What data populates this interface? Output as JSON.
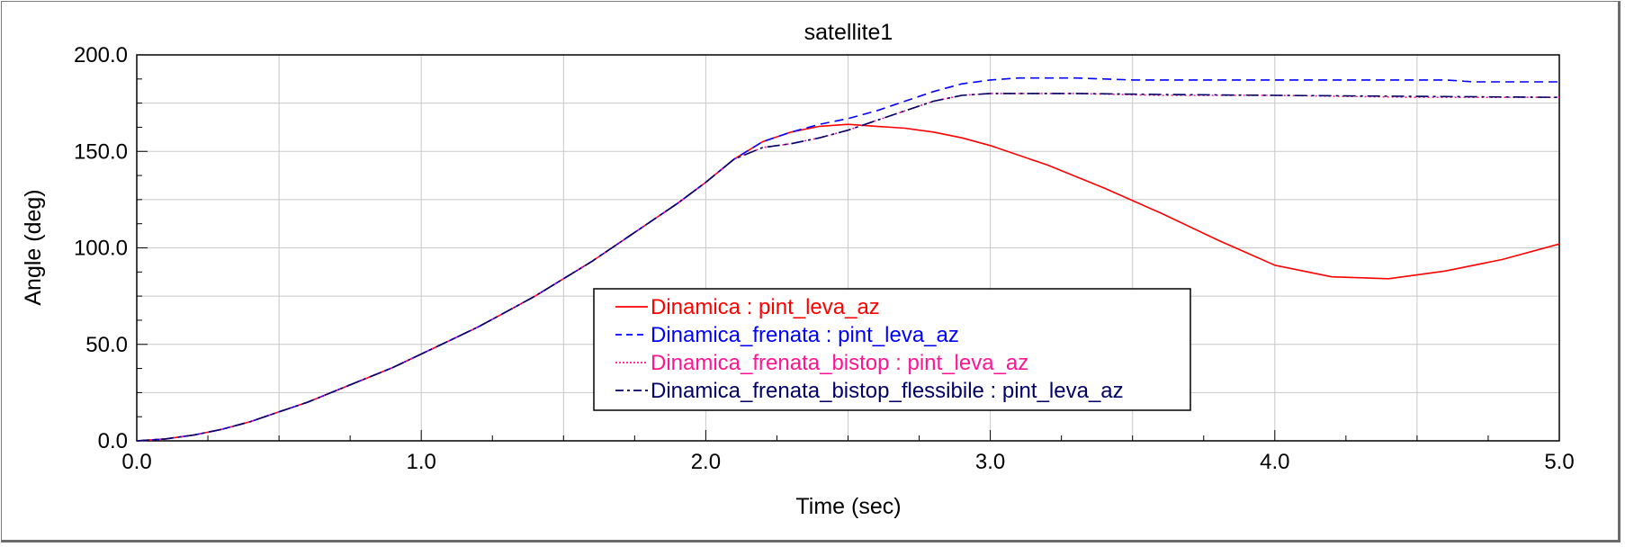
{
  "chart_data": {
    "type": "line",
    "title": "satellite1",
    "xlabel": "Time (sec)",
    "ylabel": "Angle (deg)",
    "xlim": [
      0,
      5
    ],
    "ylim": [
      0,
      200
    ],
    "x_ticks": [
      "0.0",
      "1.0",
      "2.0",
      "3.0",
      "4.0",
      "5.0"
    ],
    "y_ticks": [
      "0.0",
      "50.0",
      "100.0",
      "150.0",
      "200.0"
    ],
    "grid": true,
    "legend_position": "center",
    "series": [
      {
        "name": "Dinamica : pint_leva_az",
        "color": "#ff0000",
        "dash": "solid",
        "x": [
          0,
          0.1,
          0.2,
          0.3,
          0.4,
          0.5,
          0.6,
          0.7,
          0.8,
          0.9,
          1.0,
          1.1,
          1.2,
          1.3,
          1.4,
          1.5,
          1.6,
          1.7,
          1.8,
          1.9,
          2.0,
          2.1,
          2.2,
          2.3,
          2.4,
          2.5,
          2.6,
          2.7,
          2.8,
          2.9,
          3.0,
          3.2,
          3.4,
          3.6,
          3.8,
          4.0,
          4.2,
          4.4,
          4.6,
          4.8,
          5.0
        ],
        "y": [
          0,
          1,
          3,
          6,
          10,
          15,
          20,
          26,
          32,
          38,
          45,
          52,
          59,
          67,
          75,
          84,
          93,
          103,
          113,
          123,
          134,
          146,
          155,
          160,
          163,
          164,
          163,
          162,
          160,
          157,
          153,
          143,
          131,
          118,
          104,
          91,
          85,
          84,
          88,
          94,
          102
        ]
      },
      {
        "name": "Dinamica_frenata : pint_leva_az",
        "color": "#0000ff",
        "dash": "dashed",
        "x": [
          0,
          0.1,
          0.2,
          0.3,
          0.4,
          0.5,
          0.6,
          0.7,
          0.8,
          0.9,
          1.0,
          1.1,
          1.2,
          1.3,
          1.4,
          1.5,
          1.6,
          1.7,
          1.8,
          1.9,
          2.0,
          2.1,
          2.2,
          2.3,
          2.4,
          2.5,
          2.6,
          2.7,
          2.8,
          2.9,
          3.0,
          3.1,
          3.3,
          3.5,
          4.0,
          4.5,
          4.6,
          4.7,
          5.0
        ],
        "y": [
          0,
          1,
          3,
          6,
          10,
          15,
          20,
          26,
          32,
          38,
          45,
          52,
          59,
          67,
          75,
          84,
          93,
          103,
          113,
          123,
          134,
          146,
          155,
          160,
          164,
          167,
          171,
          176,
          181,
          185,
          187,
          188,
          188,
          187,
          187,
          187,
          187,
          186,
          186
        ]
      },
      {
        "name": "Dinamica_frenata_bistop : pint_leva_az",
        "color": "#ff1493",
        "dash": "dotted",
        "x": [
          0,
          0.1,
          0.2,
          0.3,
          0.4,
          0.5,
          0.6,
          0.7,
          0.8,
          0.9,
          1.0,
          1.1,
          1.2,
          1.3,
          1.4,
          1.5,
          1.6,
          1.7,
          1.8,
          1.9,
          2.0,
          2.1,
          2.2,
          2.3,
          2.4,
          2.5,
          2.6,
          2.7,
          2.8,
          2.9,
          3.0,
          3.3,
          3.6,
          4.0,
          4.5,
          5.0
        ],
        "y": [
          0,
          1,
          3,
          6,
          10,
          15,
          20,
          26,
          32,
          38,
          45,
          52,
          59,
          67,
          75,
          84,
          93,
          103,
          113,
          123,
          134,
          146,
          152,
          154,
          157,
          161,
          166,
          171,
          176,
          179,
          180,
          180,
          179,
          179,
          178,
          178
        ]
      },
      {
        "name": "Dinamica_frenata_bistop_flessibile : pint_leva_az",
        "color": "#000066",
        "dash": "dashdot",
        "x": [
          0,
          0.1,
          0.2,
          0.3,
          0.4,
          0.5,
          0.6,
          0.7,
          0.8,
          0.9,
          1.0,
          1.1,
          1.2,
          1.3,
          1.4,
          1.5,
          1.6,
          1.7,
          1.8,
          1.9,
          2.0,
          2.1,
          2.2,
          2.3,
          2.4,
          2.5,
          2.6,
          2.7,
          2.8,
          2.9,
          3.0,
          3.3,
          3.6,
          4.0,
          4.5,
          5.0
        ],
        "y": [
          0,
          1,
          3,
          6,
          10,
          15,
          20,
          26,
          32,
          38,
          45,
          52,
          59,
          67,
          75,
          84,
          93,
          103,
          113,
          123,
          134,
          146,
          152,
          154,
          157,
          161,
          166,
          171,
          176,
          179,
          180,
          180,
          179.5,
          179,
          178.5,
          178
        ]
      }
    ]
  }
}
